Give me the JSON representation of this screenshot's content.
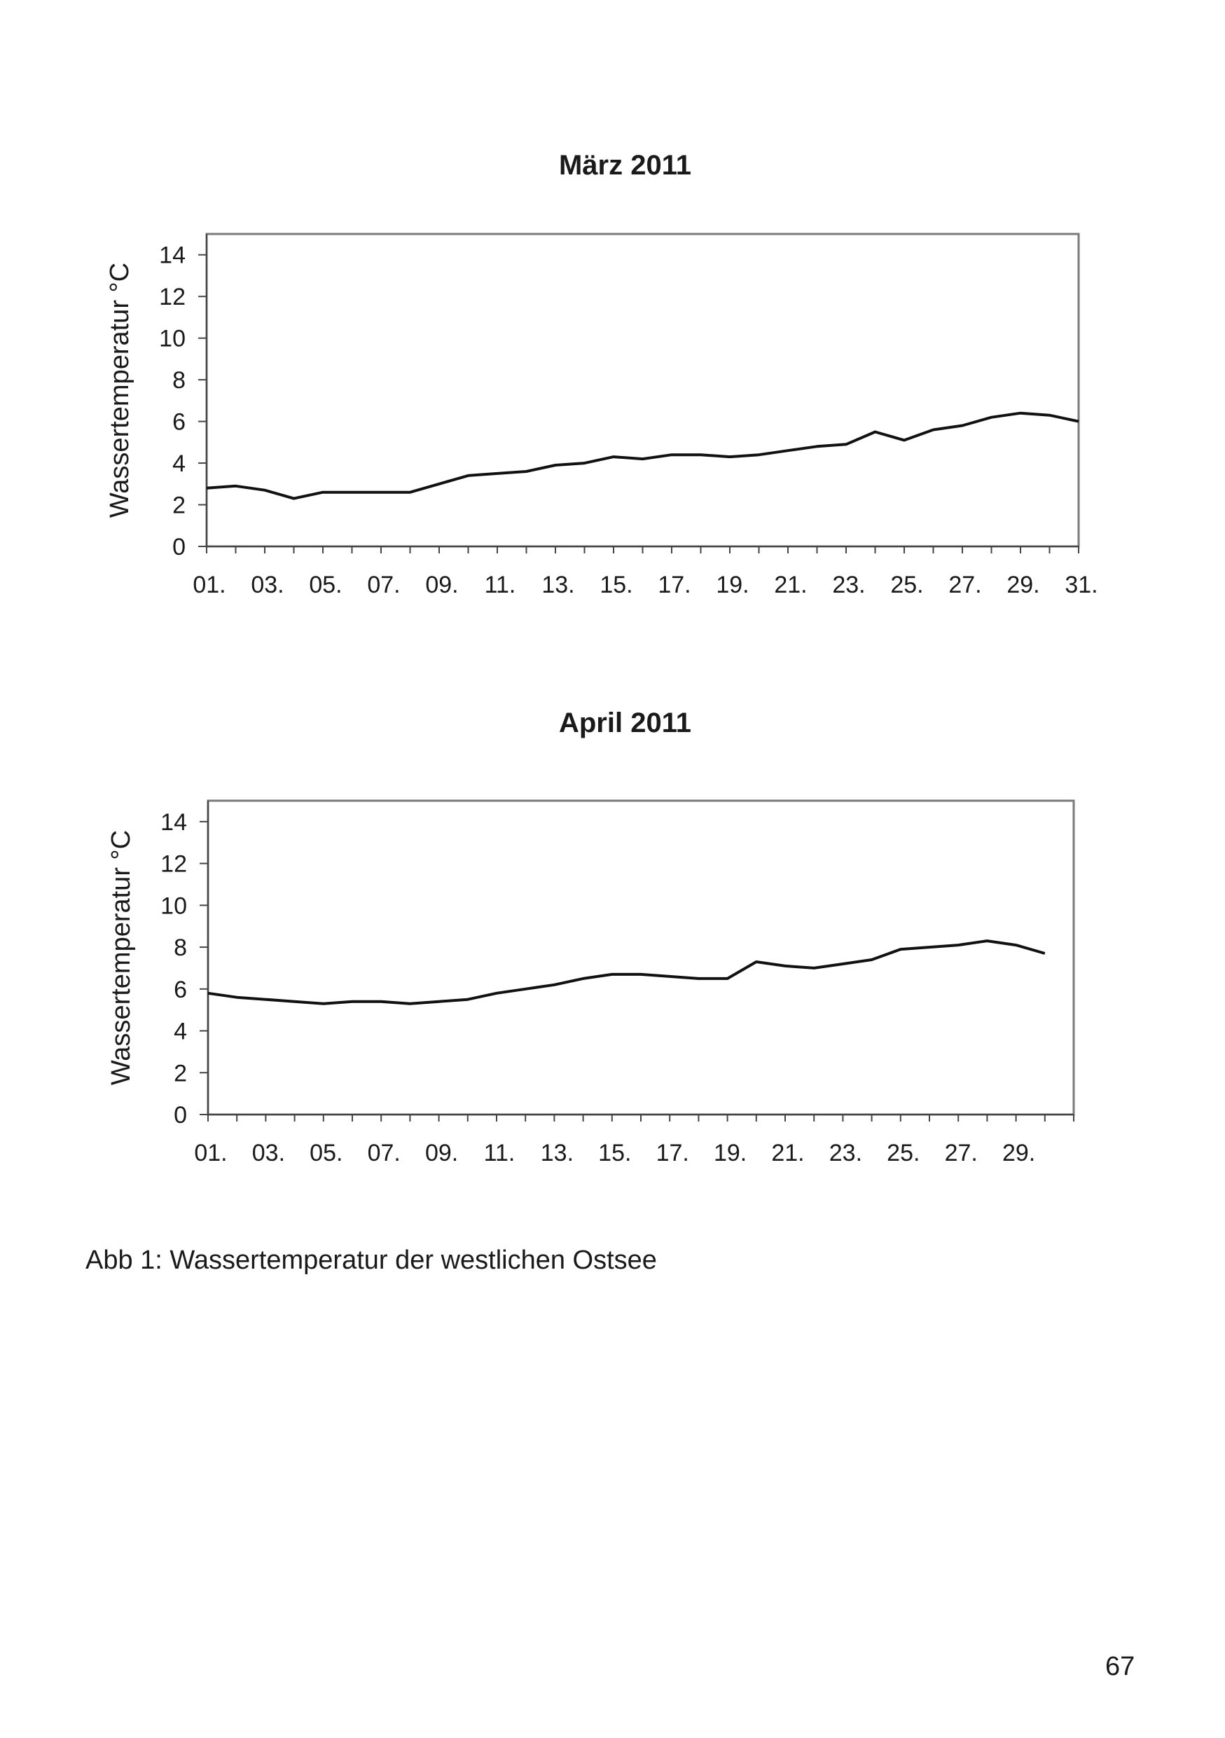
{
  "chart_data": [
    {
      "type": "line",
      "title": "März 2011",
      "ylabel": "Wassertemperatur °C",
      "xlabel": "",
      "ylim": [
        0,
        15
      ],
      "yticks": [
        0,
        2,
        4,
        6,
        8,
        10,
        12,
        14
      ],
      "x": [
        1,
        2,
        3,
        4,
        5,
        6,
        7,
        8,
        9,
        10,
        11,
        12,
        13,
        14,
        15,
        16,
        17,
        18,
        19,
        20,
        21,
        22,
        23,
        24,
        25,
        26,
        27,
        28,
        29,
        30,
        31
      ],
      "x_tick_labels": [
        "01.",
        "03.",
        "05.",
        "07.",
        "09.",
        "11.",
        "13.",
        "15.",
        "17.",
        "19.",
        "21.",
        "23.",
        "25.",
        "27.",
        "29.",
        "31."
      ],
      "x_tick_label_days": [
        1,
        3,
        5,
        7,
        9,
        11,
        13,
        15,
        17,
        19,
        21,
        23,
        25,
        27,
        29,
        31
      ],
      "x_minor_ticks": [
        1,
        2,
        3,
        4,
        5,
        6,
        7,
        8,
        9,
        10,
        11,
        12,
        13,
        14,
        15,
        16,
        17,
        18,
        19,
        20,
        21,
        22,
        23,
        24,
        25,
        26,
        27,
        28,
        29,
        30,
        31
      ],
      "xlim": [
        1,
        31
      ],
      "series": [
        {
          "values": [
            2.8,
            2.9,
            2.7,
            2.3,
            2.6,
            2.6,
            2.6,
            2.6,
            3.0,
            3.4,
            3.5,
            3.6,
            3.9,
            4.0,
            4.3,
            4.2,
            4.4,
            4.4,
            4.3,
            4.4,
            4.6,
            4.8,
            4.9,
            5.5,
            5.1,
            5.6,
            5.8,
            6.2,
            6.4,
            6.3,
            6.0
          ]
        }
      ],
      "grid": false,
      "legend": "none"
    },
    {
      "type": "line",
      "title": "April 2011",
      "ylabel": "Wassertemperatur °C",
      "xlabel": "",
      "ylim": [
        0,
        15
      ],
      "yticks": [
        0,
        2,
        4,
        6,
        8,
        10,
        12,
        14
      ],
      "x": [
        1,
        2,
        3,
        4,
        5,
        6,
        7,
        8,
        9,
        10,
        11,
        12,
        13,
        14,
        15,
        16,
        17,
        18,
        19,
        20,
        21,
        22,
        23,
        24,
        25,
        26,
        27,
        28,
        29,
        30
      ],
      "x_tick_labels": [
        "01.",
        "03.",
        "05.",
        "07.",
        "09.",
        "11.",
        "13.",
        "15.",
        "17.",
        "19.",
        "21.",
        "23.",
        "25.",
        "27.",
        "29."
      ],
      "x_tick_label_days": [
        1,
        3,
        5,
        7,
        9,
        11,
        13,
        15,
        17,
        19,
        21,
        23,
        25,
        27,
        29
      ],
      "x_minor_ticks": [
        1,
        2,
        3,
        4,
        5,
        6,
        7,
        8,
        9,
        10,
        11,
        12,
        13,
        14,
        15,
        16,
        17,
        18,
        19,
        20,
        21,
        22,
        23,
        24,
        25,
        26,
        27,
        28,
        29,
        30,
        31
      ],
      "xlim": [
        1,
        31
      ],
      "series": [
        {
          "values": [
            5.8,
            5.6,
            5.5,
            5.4,
            5.3,
            5.4,
            5.4,
            5.3,
            5.4,
            5.5,
            5.8,
            6.0,
            6.2,
            6.5,
            6.7,
            6.7,
            6.6,
            6.5,
            6.5,
            7.3,
            7.1,
            7.0,
            7.2,
            7.4,
            7.9,
            8.0,
            8.1,
            8.3,
            8.1,
            7.7
          ]
        }
      ],
      "grid": false,
      "legend": "none"
    }
  ],
  "caption": "Abb 1: Wassertemperatur der westlichen Ostsee",
  "page_number": "67",
  "colors": {
    "line": "#111111",
    "frame": "#7a7a7a",
    "axis": "#444444",
    "text": "#1a1a1a"
  }
}
